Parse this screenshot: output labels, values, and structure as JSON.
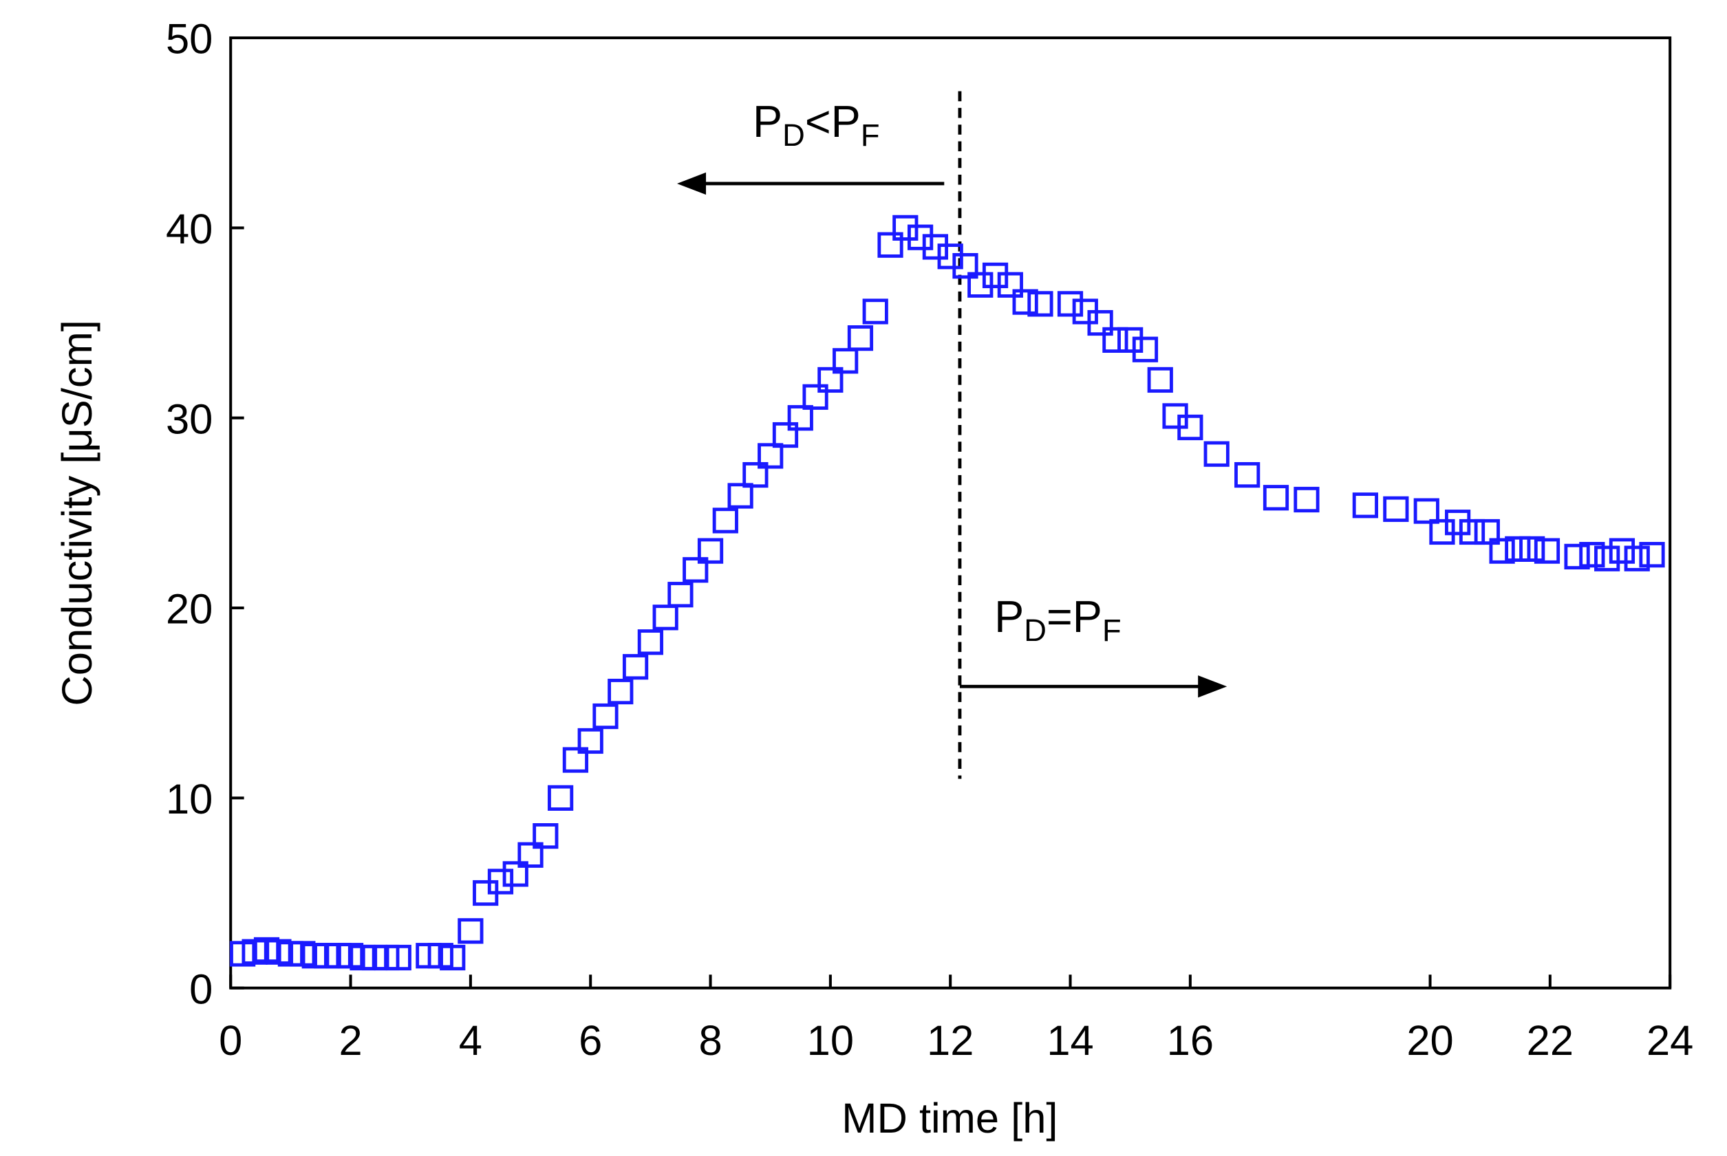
{
  "chart_data": {
    "type": "scatter",
    "x_label": "MD time [h]",
    "y_label": "Conductivity [μS/cm]",
    "xlim": [
      0,
      24
    ],
    "xticks": [
      0,
      2,
      4,
      6,
      8,
      10,
      12,
      14,
      16,
      20,
      22,
      24
    ],
    "ylim": [
      0,
      50
    ],
    "yticks": [
      0,
      10,
      20,
      30,
      40,
      50
    ],
    "series": [
      {
        "color": "#1a1aff",
        "x": [
          0.2,
          0.4,
          0.6,
          0.8,
          1.0,
          1.2,
          1.4,
          1.6,
          1.8,
          2.0,
          2.2,
          2.4,
          2.6,
          2.8,
          3.3,
          3.5,
          3.7,
          4.0,
          4.25,
          4.5,
          4.75,
          5.0,
          5.25,
          5.5,
          5.75,
          6.0,
          6.25,
          6.5,
          6.75,
          7.0,
          7.25,
          7.5,
          7.75,
          8.0,
          8.25,
          8.5,
          8.75,
          9.0,
          9.25,
          9.5,
          9.75,
          10.0,
          10.25,
          10.5,
          10.75,
          11.0,
          11.25,
          11.5,
          11.75,
          12.0,
          12.25,
          12.5,
          12.75,
          13.0,
          13.25,
          13.5,
          14.0,
          14.25,
          14.5,
          14.75,
          15.0,
          15.25,
          15.5,
          15.75,
          16.0,
          16.44,
          16.95,
          17.43,
          17.94,
          18.92,
          19.43,
          19.94,
          20.2,
          20.46,
          20.7,
          20.95,
          21.2,
          21.46,
          21.7,
          21.95,
          22.45,
          22.7,
          22.95,
          23.2,
          23.45,
          23.7
        ],
        "values": [
          1.8,
          1.9,
          2.0,
          1.9,
          1.8,
          1.8,
          1.7,
          1.7,
          1.7,
          1.7,
          1.6,
          1.6,
          1.6,
          1.6,
          1.7,
          1.7,
          1.6,
          3.0,
          5.0,
          5.6,
          6.0,
          7.0,
          8.0,
          10.0,
          12.0,
          13.0,
          14.3,
          15.6,
          16.9,
          18.2,
          19.5,
          20.7,
          22.0,
          23.0,
          24.6,
          25.9,
          27.0,
          28.0,
          29.1,
          30.0,
          31.1,
          32.0,
          33.0,
          34.2,
          35.6,
          39.1,
          40.0,
          39.5,
          39.0,
          38.5,
          38.0,
          37.0,
          37.5,
          37.0,
          36.1,
          36.0,
          36.0,
          35.6,
          35.0,
          34.1,
          34.1,
          33.6,
          32.0,
          30.1,
          29.5,
          28.1,
          27.0,
          25.8,
          25.7,
          25.4,
          25.2,
          25.1,
          24.0,
          24.5,
          24.0,
          24.0,
          23.0,
          23.1,
          23.1,
          23.0,
          22.7,
          22.8,
          22.6,
          23.0,
          22.6,
          22.8
        ]
      }
    ],
    "annotations": [
      {
        "parts": [
          "P",
          "D",
          "<P",
          "F"
        ]
      },
      {
        "parts": [
          "P",
          "D",
          "=P",
          "F"
        ]
      }
    ]
  }
}
